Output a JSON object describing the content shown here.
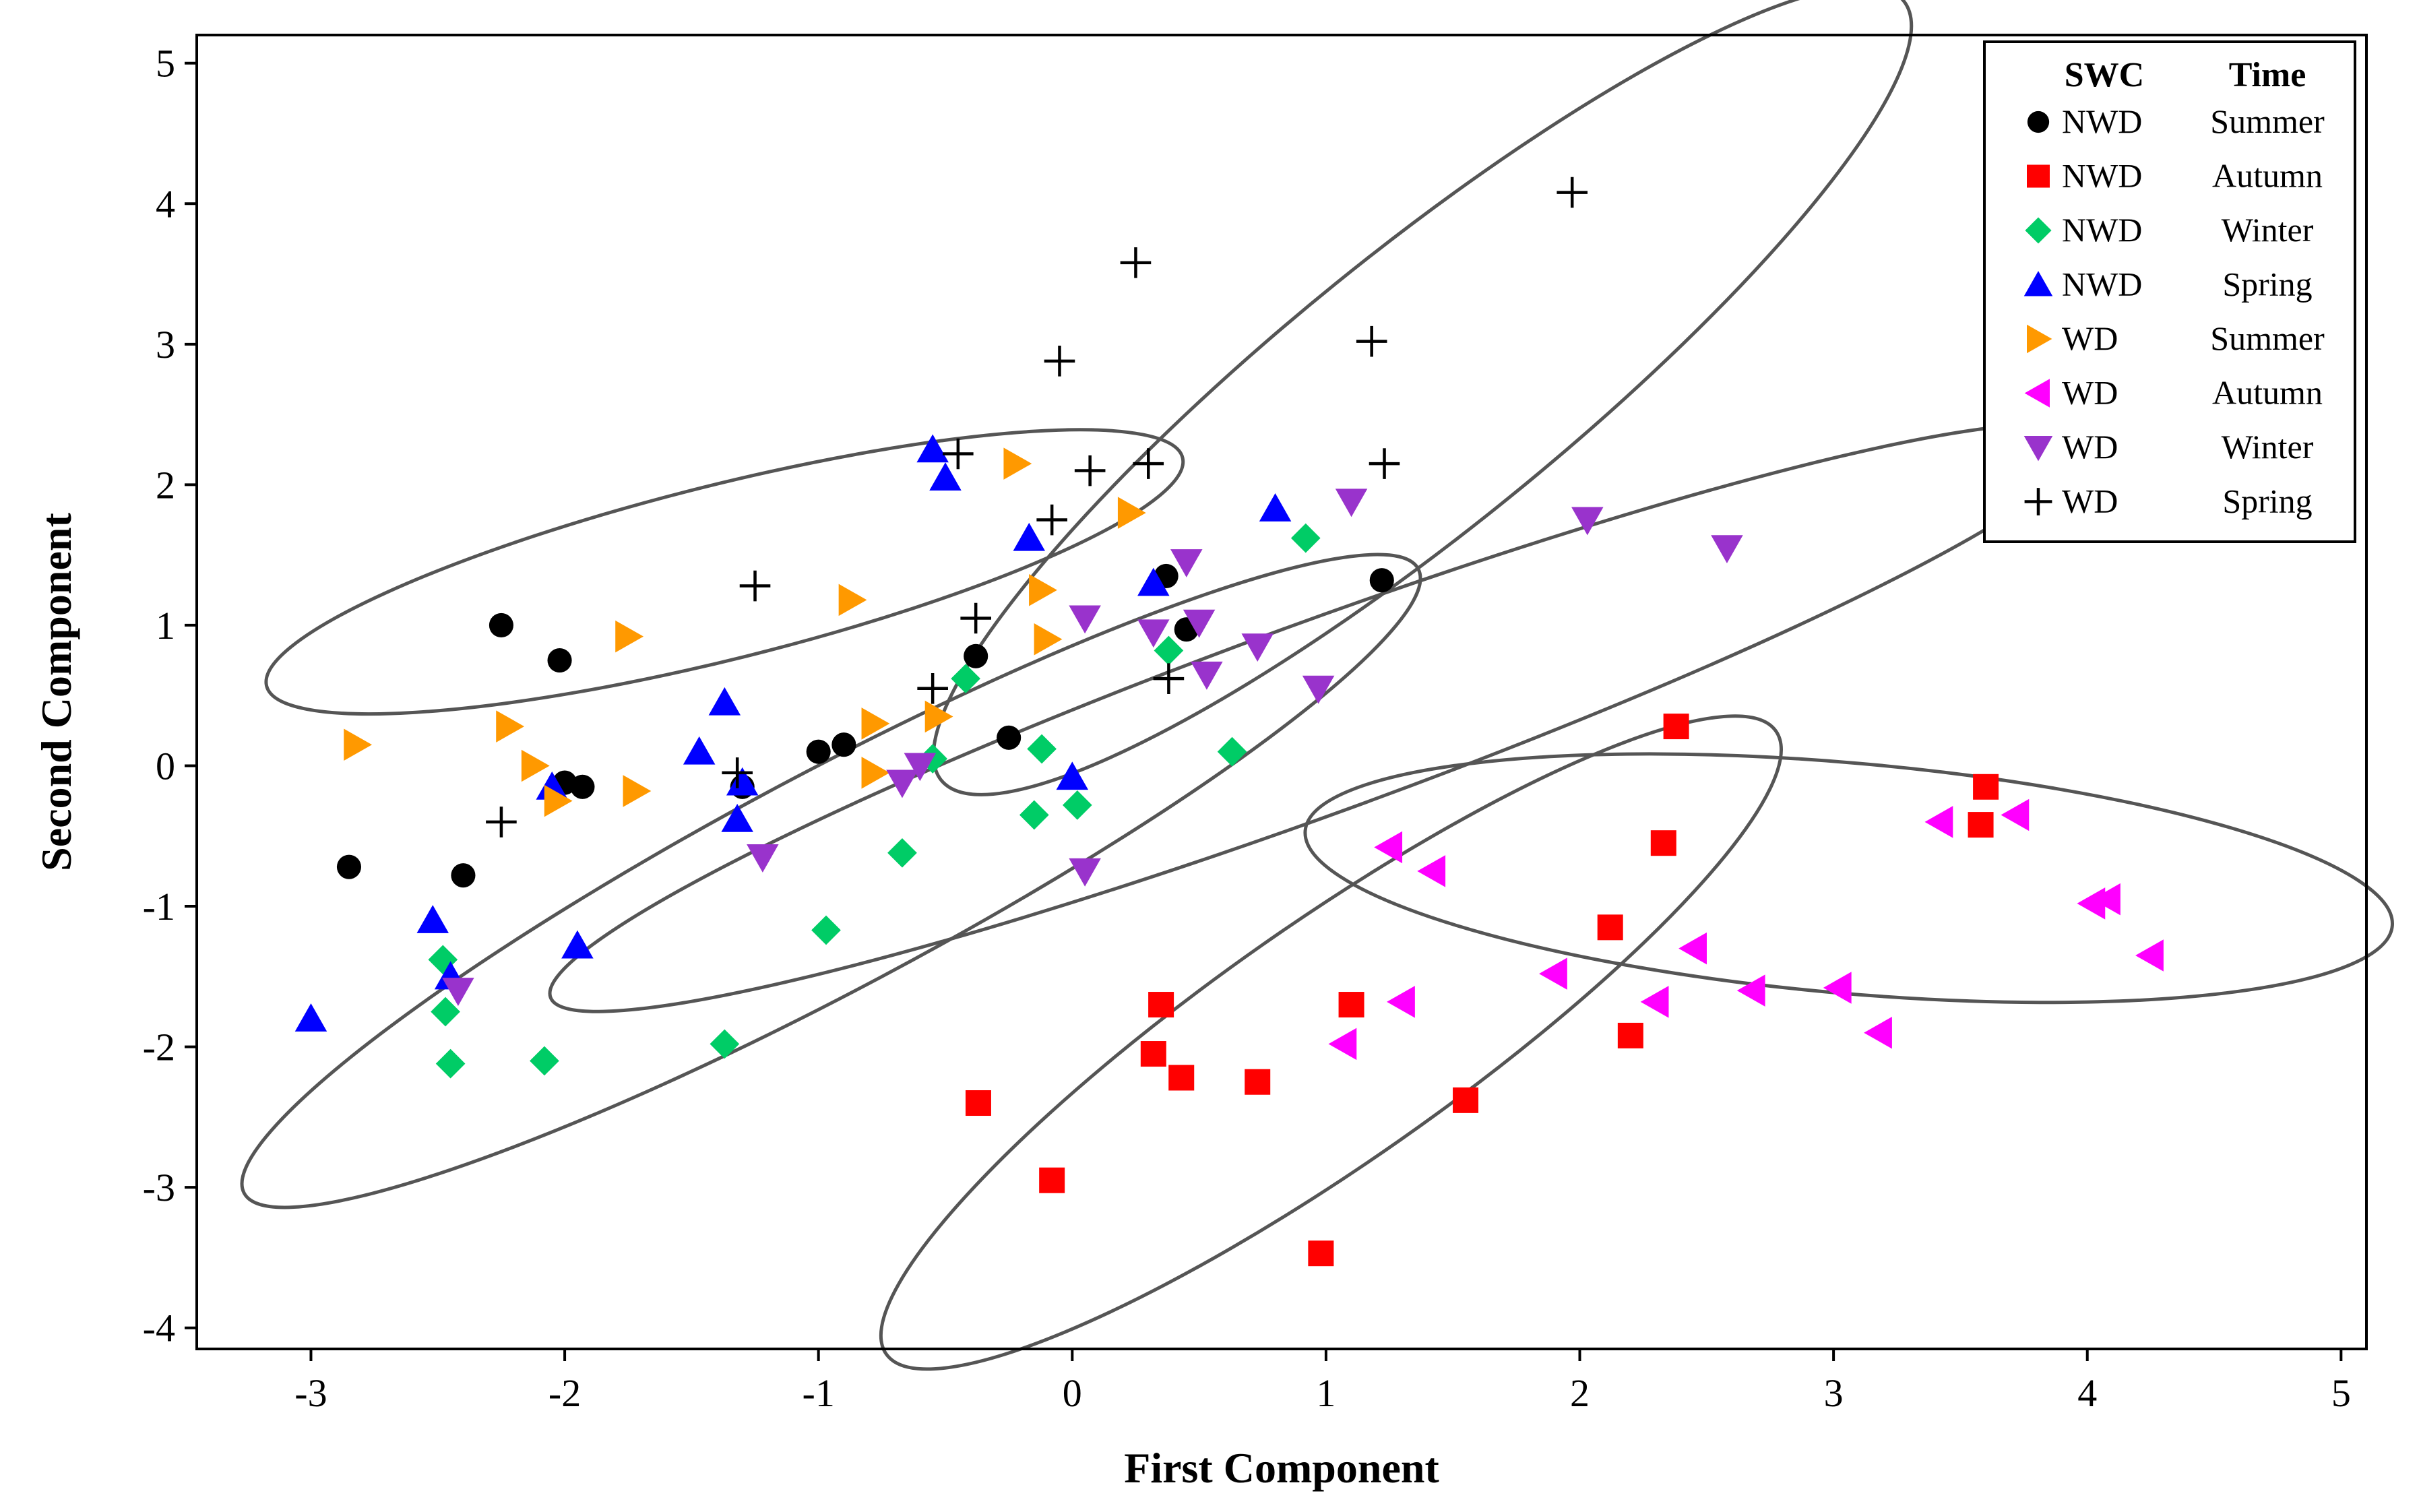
{
  "chart_data": {
    "type": "scatter",
    "title": "",
    "xlabel": "First Component",
    "ylabel": "Second Component",
    "xlim": [
      -3.45,
      5.1
    ],
    "ylim": [
      -4.15,
      5.2
    ],
    "xticks": [
      -3,
      -2,
      -1,
      0,
      1,
      2,
      3,
      4,
      5
    ],
    "yticks": [
      -4,
      -3,
      -2,
      -1,
      0,
      1,
      2,
      3,
      4,
      5
    ],
    "xtick_labels": [
      "-3",
      "-2",
      "-1",
      "0",
      "1",
      "2",
      "3",
      "4",
      "5"
    ],
    "ytick_labels": [
      "-4",
      "-3",
      "-2",
      "-1",
      "0",
      "1",
      "2",
      "3",
      "4",
      "5"
    ],
    "grid": false,
    "legend": {
      "position": "top-right",
      "header_swc": "SWC",
      "header_time": "Time",
      "entries": [
        {
          "swc": "NWD",
          "time": "Summer"
        },
        {
          "swc": "NWD",
          "time": "Autumn"
        },
        {
          "swc": "NWD",
          "time": "Winter"
        },
        {
          "swc": "NWD",
          "time": "Spring"
        },
        {
          "swc": "WD",
          "time": "Summer"
        },
        {
          "swc": "WD",
          "time": "Autumn"
        },
        {
          "swc": "WD",
          "time": "Winter"
        },
        {
          "swc": "WD",
          "time": "Spring"
        }
      ]
    },
    "series": [
      {
        "name": "NWD Summer",
        "marker": "circle",
        "color": "#000000",
        "points": [
          [
            -2.85,
            -0.72
          ],
          [
            -2.4,
            -0.78
          ],
          [
            -2.25,
            1.0
          ],
          [
            -2.02,
            0.75
          ],
          [
            -2.0,
            -0.12
          ],
          [
            -1.93,
            -0.15
          ],
          [
            -1.3,
            -0.15
          ],
          [
            -1.0,
            0.1
          ],
          [
            -0.9,
            0.15
          ],
          [
            -0.38,
            0.78
          ],
          [
            -0.25,
            0.2
          ],
          [
            0.37,
            1.35
          ],
          [
            0.45,
            0.97
          ],
          [
            1.22,
            1.32
          ]
        ]
      },
      {
        "name": "NWD Autumn",
        "marker": "square",
        "color": "#ff0000",
        "points": [
          [
            -0.37,
            -2.4
          ],
          [
            -0.08,
            -2.95
          ],
          [
            0.32,
            -2.05
          ],
          [
            0.35,
            -1.7
          ],
          [
            0.43,
            -2.22
          ],
          [
            0.73,
            -2.25
          ],
          [
            0.98,
            -3.47
          ],
          [
            1.1,
            -1.7
          ],
          [
            1.55,
            -2.38
          ],
          [
            2.12,
            -1.15
          ],
          [
            2.2,
            -1.92
          ],
          [
            2.33,
            -0.55
          ],
          [
            2.38,
            0.28
          ],
          [
            3.58,
            -0.42
          ],
          [
            3.6,
            -0.15
          ]
        ]
      },
      {
        "name": "NWD Winter",
        "marker": "diamond",
        "color": "#00cc66",
        "points": [
          [
            -2.48,
            -1.38
          ],
          [
            -2.47,
            -1.75
          ],
          [
            -2.45,
            -2.12
          ],
          [
            -2.08,
            -2.1
          ],
          [
            -1.37,
            -1.98
          ],
          [
            -0.97,
            -1.17
          ],
          [
            -0.67,
            -0.62
          ],
          [
            -0.55,
            0.05
          ],
          [
            -0.42,
            0.62
          ],
          [
            -0.15,
            -0.35
          ],
          [
            -0.12,
            0.12
          ],
          [
            0.02,
            -0.28
          ],
          [
            0.38,
            0.82
          ],
          [
            0.63,
            0.1
          ],
          [
            0.92,
            1.62
          ]
        ]
      },
      {
        "name": "NWD Spring",
        "marker": "triangle-up",
        "color": "#0000ff",
        "points": [
          [
            -3.0,
            -1.8
          ],
          [
            -2.52,
            -1.1
          ],
          [
            -2.45,
            -1.5
          ],
          [
            -2.05,
            -0.15
          ],
          [
            -1.95,
            -1.28
          ],
          [
            -1.47,
            0.1
          ],
          [
            -1.37,
            0.45
          ],
          [
            -1.32,
            -0.38
          ],
          [
            -1.3,
            -0.12
          ],
          [
            -0.55,
            2.25
          ],
          [
            -0.5,
            2.05
          ],
          [
            -0.17,
            1.62
          ],
          [
            0.0,
            -0.08
          ],
          [
            0.32,
            1.3
          ],
          [
            0.8,
            1.83
          ]
        ]
      },
      {
        "name": "WD Summer",
        "marker": "triangle-right",
        "color": "#ff9900",
        "points": [
          [
            -2.82,
            0.15
          ],
          [
            -2.22,
            0.28
          ],
          [
            -2.12,
            0.0
          ],
          [
            -2.03,
            -0.25
          ],
          [
            -1.75,
            0.92
          ],
          [
            -1.72,
            -0.18
          ],
          [
            -0.87,
            1.18
          ],
          [
            -0.78,
            0.3
          ],
          [
            -0.78,
            -0.05
          ],
          [
            -0.53,
            0.35
          ],
          [
            -0.22,
            2.15
          ],
          [
            -0.12,
            1.25
          ],
          [
            -0.1,
            0.9
          ],
          [
            0.23,
            1.8
          ]
        ]
      },
      {
        "name": "WD Autumn",
        "marker": "triangle-left",
        "color": "#ff00ff",
        "points": [
          [
            1.07,
            -1.98
          ],
          [
            1.25,
            -0.58
          ],
          [
            1.3,
            -1.68
          ],
          [
            1.42,
            -0.75
          ],
          [
            1.9,
            -1.48
          ],
          [
            2.3,
            -1.68
          ],
          [
            2.45,
            -1.3
          ],
          [
            2.68,
            -1.6
          ],
          [
            3.02,
            -1.58
          ],
          [
            3.18,
            -1.9
          ],
          [
            3.42,
            -0.4
          ],
          [
            3.72,
            -0.35
          ],
          [
            4.02,
            -0.98
          ],
          [
            4.08,
            -0.95
          ],
          [
            4.25,
            -1.35
          ]
        ]
      },
      {
        "name": "WD Winter",
        "marker": "triangle-down",
        "color": "#9933cc",
        "points": [
          [
            -2.42,
            -1.6
          ],
          [
            -1.22,
            -0.65
          ],
          [
            -0.67,
            -0.12
          ],
          [
            -0.6,
            0.0
          ],
          [
            0.05,
            1.05
          ],
          [
            0.05,
            -0.75
          ],
          [
            0.32,
            0.95
          ],
          [
            0.45,
            1.45
          ],
          [
            0.5,
            1.02
          ],
          [
            0.53,
            0.65
          ],
          [
            0.73,
            0.85
          ],
          [
            0.97,
            0.55
          ],
          [
            1.1,
            1.88
          ],
          [
            2.03,
            1.75
          ],
          [
            2.58,
            1.55
          ]
        ]
      },
      {
        "name": "WD Spring",
        "marker": "plus",
        "color": "#000000",
        "points": [
          [
            -2.25,
            -0.4
          ],
          [
            -1.32,
            -0.05
          ],
          [
            -1.25,
            1.28
          ],
          [
            -0.55,
            0.55
          ],
          [
            -0.45,
            2.22
          ],
          [
            -0.38,
            1.05
          ],
          [
            -0.08,
            1.75
          ],
          [
            -0.05,
            2.88
          ],
          [
            0.07,
            2.1
          ],
          [
            0.25,
            3.58
          ],
          [
            0.3,
            2.15
          ],
          [
            0.38,
            0.62
          ],
          [
            1.18,
            3.02
          ],
          [
            1.23,
            2.15
          ],
          [
            1.97,
            4.08
          ]
        ]
      }
    ],
    "ellipses": [
      {
        "cx": 1.38,
        "cy": 2.67,
        "rx": 2.44,
        "ry": 0.98,
        "angle_deg": 39
      },
      {
        "cx": -1.37,
        "cy": 1.38,
        "rx": 1.86,
        "ry": 0.62,
        "angle_deg": 14
      },
      {
        "cx": 0.97,
        "cy": 0.34,
        "rx": 3.22,
        "ry": 0.68,
        "angle_deg": 20
      },
      {
        "cx": -0.95,
        "cy": -0.82,
        "rx": 2.62,
        "ry": 0.77,
        "angle_deg": 28
      },
      {
        "cx": 1.02,
        "cy": -1.97,
        "rx": 2.14,
        "ry": 0.85,
        "angle_deg": 35
      },
      {
        "cx": 3.06,
        "cy": -0.8,
        "rx": 2.15,
        "ry": 0.82,
        "angle_deg": -5
      }
    ]
  }
}
